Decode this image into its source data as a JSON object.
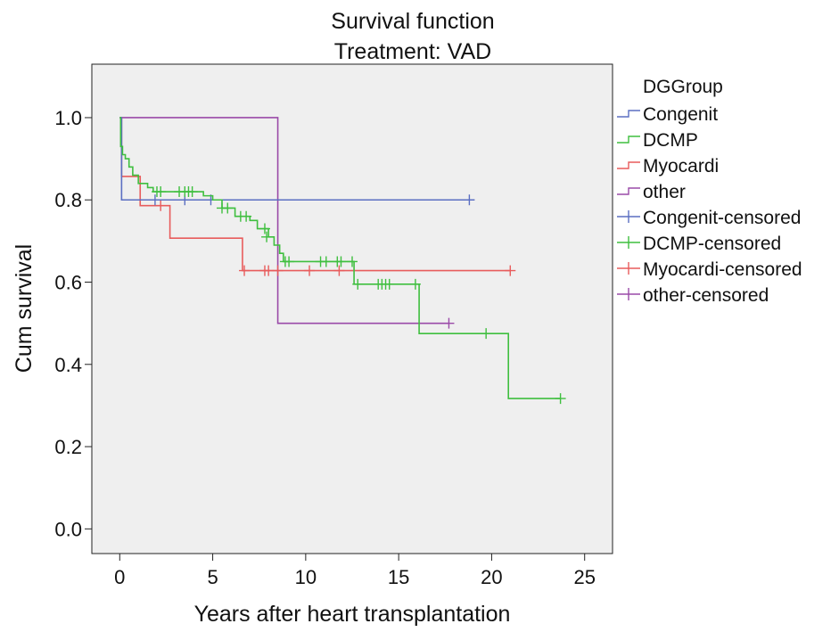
{
  "chart_data": {
    "type": "line",
    "title": "Survival function",
    "subtitle": "Treatment: VAD",
    "xlabel": "Years after heart transplantation",
    "ylabel": "Cum survival",
    "xlim": [
      -1.5,
      26.5
    ],
    "ylim": [
      -0.06,
      1.13
    ],
    "xticks": [
      0,
      5,
      10,
      15,
      20,
      25
    ],
    "yticks": [
      0.0,
      0.2,
      0.4,
      0.6,
      0.8,
      1.0
    ],
    "xtick_labels": [
      "0",
      "5",
      "10",
      "15",
      "20",
      "25"
    ],
    "ytick_labels": [
      "0.0",
      "0.2",
      "0.4",
      "0.6",
      "0.8",
      "1.0"
    ],
    "grid": false,
    "legend_title": "DGGroup",
    "legend_position": "right-outside",
    "series": [
      {
        "name": "Congenit",
        "censored_name": "Congenit-censored",
        "color": "#5b6fc2",
        "steps": [
          [
            0,
            1.0
          ],
          [
            0.1,
            0.8
          ],
          [
            18.8,
            0.8
          ]
        ],
        "censored": [
          [
            1.9,
            0.8
          ],
          [
            3.5,
            0.8
          ],
          [
            4.9,
            0.8
          ],
          [
            18.8,
            0.8
          ]
        ]
      },
      {
        "name": "DCMP",
        "censored_name": "DCMP-censored",
        "color": "#3fbf3f",
        "steps": [
          [
            0,
            1.0
          ],
          [
            0.05,
            0.93
          ],
          [
            0.15,
            0.91
          ],
          [
            0.3,
            0.9
          ],
          [
            0.5,
            0.88
          ],
          [
            0.7,
            0.86
          ],
          [
            1.0,
            0.84
          ],
          [
            1.5,
            0.83
          ],
          [
            1.8,
            0.82
          ],
          [
            4.5,
            0.81
          ],
          [
            5.0,
            0.8
          ],
          [
            5.5,
            0.78
          ],
          [
            6.2,
            0.76
          ],
          [
            7.0,
            0.75
          ],
          [
            7.4,
            0.73
          ],
          [
            8.0,
            0.71
          ],
          [
            8.3,
            0.69
          ],
          [
            8.6,
            0.67
          ],
          [
            8.8,
            0.65
          ],
          [
            12.6,
            0.595
          ],
          [
            16.1,
            0.475
          ],
          [
            20.9,
            0.317
          ],
          [
            23.7,
            0.317
          ]
        ],
        "censored": [
          [
            2.0,
            0.82
          ],
          [
            2.2,
            0.82
          ],
          [
            3.2,
            0.82
          ],
          [
            3.5,
            0.82
          ],
          [
            3.7,
            0.82
          ],
          [
            3.9,
            0.82
          ],
          [
            5.5,
            0.78
          ],
          [
            5.8,
            0.78
          ],
          [
            6.5,
            0.76
          ],
          [
            6.8,
            0.76
          ],
          [
            7.8,
            0.73
          ],
          [
            7.9,
            0.71
          ],
          [
            8.9,
            0.65
          ],
          [
            9.1,
            0.65
          ],
          [
            10.8,
            0.65
          ],
          [
            11.1,
            0.65
          ],
          [
            11.7,
            0.65
          ],
          [
            11.9,
            0.65
          ],
          [
            12.5,
            0.65
          ],
          [
            12.8,
            0.595
          ],
          [
            13.9,
            0.595
          ],
          [
            14.1,
            0.595
          ],
          [
            14.3,
            0.595
          ],
          [
            14.5,
            0.595
          ],
          [
            15.9,
            0.595
          ],
          [
            19.7,
            0.475
          ],
          [
            23.7,
            0.317
          ]
        ]
      },
      {
        "name": "Myocardi",
        "censored_name": "Myocardi-censored",
        "color": "#e85c5c",
        "steps": [
          [
            0,
            1.0
          ],
          [
            0.1,
            0.857
          ],
          [
            1.1,
            0.786
          ],
          [
            2.7,
            0.707
          ],
          [
            6.6,
            0.628
          ],
          [
            21.0,
            0.628
          ]
        ],
        "censored": [
          [
            2.2,
            0.786
          ],
          [
            6.7,
            0.628
          ],
          [
            7.8,
            0.628
          ],
          [
            8.0,
            0.628
          ],
          [
            8.5,
            0.628
          ],
          [
            10.2,
            0.628
          ],
          [
            11.8,
            0.628
          ],
          [
            21.0,
            0.628
          ]
        ]
      },
      {
        "name": "other",
        "censored_name": "other-censored",
        "color": "#9a4aa8",
        "steps": [
          [
            0,
            1.0
          ],
          [
            8.5,
            0.5
          ],
          [
            17.7,
            0.5
          ]
        ],
        "censored": [
          [
            17.7,
            0.5
          ]
        ]
      }
    ]
  }
}
